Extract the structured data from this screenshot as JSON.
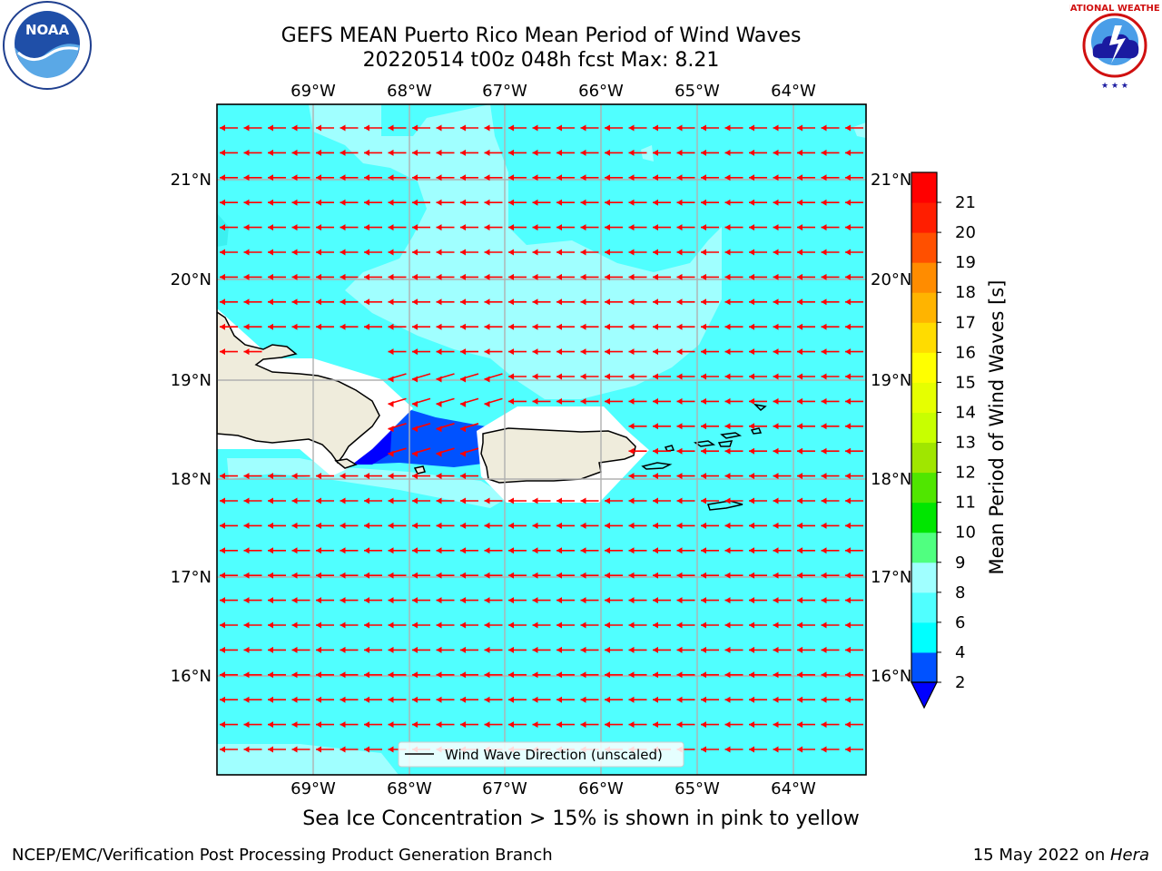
{
  "header": {
    "title_line1": "GEFS MEAN Puerto Rico Mean Period of Wind Waves",
    "title_line2": "20220514 t00z 048h fcst   Max: 8.21"
  },
  "logos": {
    "left": "noaa-logo",
    "right": "national-weather-service-logo"
  },
  "map": {
    "lon_labels": [
      "69°W",
      "68°W",
      "67°W",
      "66°W",
      "65°W",
      "64°W"
    ],
    "lat_labels": [
      "21°N",
      "20°N",
      "19°N",
      "18°N",
      "17°N",
      "16°N"
    ],
    "legend_label": "Wind Wave Direction (unscaled)",
    "vector_color": "#ff0000"
  },
  "colorbar": {
    "title": "Mean Period of Wind Waves [s]",
    "levels": [
      "2",
      "4",
      "6",
      "8",
      "9",
      "10",
      "11",
      "12",
      "13",
      "14",
      "15",
      "16",
      "17",
      "18",
      "19",
      "20",
      "21"
    ],
    "colors": [
      "#0052ff",
      "#00ffff",
      "#50ffff",
      "#a0ffff",
      "#50ff80",
      "#00e600",
      "#50e600",
      "#a0e600",
      "#c8ff00",
      "#e6ff00",
      "#ffff00",
      "#ffdc00",
      "#ffb400",
      "#ff8c00",
      "#ff5000",
      "#ff1e00",
      "#ff0000"
    ],
    "under_color": "#0000ff"
  },
  "subtitle": "Sea Ice Concentration > 15% is shown in pink to yellow",
  "footer": {
    "left": "NCEP/EMC/Verification Post Processing Product Generation Branch",
    "right_date": "15 May 2022 on ",
    "right_host": "Hera"
  }
}
